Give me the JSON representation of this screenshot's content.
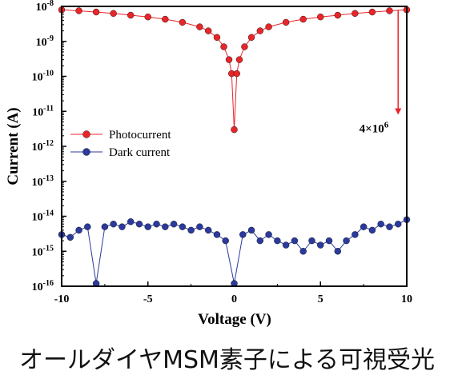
{
  "chart_data": {
    "type": "scatter",
    "title": "",
    "xlabel": "Voltage (V)",
    "ylabel": "Current (A)",
    "xlim": [
      -10,
      10
    ],
    "ylim": [
      1e-16,
      1e-08
    ],
    "yscale": "log",
    "x_ticks": [
      "-10",
      "-5",
      "0",
      "5",
      "10"
    ],
    "y_ticks": [
      {
        "base": "10",
        "exp": "-16"
      },
      {
        "base": "10",
        "exp": "-15"
      },
      {
        "base": "10",
        "exp": "-14"
      },
      {
        "base": "10",
        "exp": "-13"
      },
      {
        "base": "10",
        "exp": "-12"
      },
      {
        "base": "10",
        "exp": "-11"
      },
      {
        "base": "10",
        "exp": "-10"
      },
      {
        "base": "10",
        "exp": "-9"
      },
      {
        "base": "10",
        "exp": "-8"
      }
    ],
    "legend": {
      "position": "left-middle"
    },
    "series": [
      {
        "name": "Photocurrent",
        "color": "#e8262a",
        "x": [
          -10,
          -9,
          -8,
          -7,
          -6,
          -5,
          -4,
          -3,
          -2,
          -1.5,
          -1,
          -0.6,
          -0.3,
          -0.15,
          0,
          0.15,
          0.3,
          0.6,
          1,
          1.5,
          2,
          3,
          4,
          5,
          6,
          7,
          8,
          9,
          10
        ],
        "y": [
          8e-09,
          7.5e-09,
          6.9e-09,
          6.3e-09,
          5.6e-09,
          5e-09,
          4.3e-09,
          3.5e-09,
          2.6e-09,
          2e-09,
          1.3e-09,
          7e-10,
          3e-10,
          1.2e-10,
          3e-12,
          1.2e-10,
          3e-10,
          7e-10,
          1.3e-09,
          2e-09,
          2.6e-09,
          3.5e-09,
          4.3e-09,
          5e-09,
          5.6e-09,
          6.3e-09,
          6.9e-09,
          7.5e-09,
          8e-09
        ]
      },
      {
        "name": "Dark current",
        "color": "#2b3a9c",
        "x": [
          -10,
          -9.5,
          -9,
          -8.5,
          -8,
          -7.5,
          -7,
          -6.5,
          -6,
          -5.5,
          -5,
          -4.5,
          -4,
          -3.5,
          -3,
          -2.5,
          -2,
          -1.5,
          -1,
          -0.5,
          0,
          0.5,
          1,
          1.5,
          2,
          2.5,
          3,
          3.5,
          4,
          4.5,
          5,
          5.5,
          6,
          6.5,
          7,
          7.5,
          8,
          8.5,
          9,
          9.5,
          10
        ],
        "y": [
          3e-15,
          2.5e-15,
          4e-15,
          5e-15,
          1.2e-16,
          5e-15,
          6e-15,
          5e-15,
          7e-15,
          6e-15,
          5e-15,
          6e-15,
          5e-15,
          6e-15,
          5e-15,
          4e-15,
          5e-15,
          4e-15,
          3e-15,
          2e-15,
          1.2e-16,
          3e-15,
          4e-15,
          2e-15,
          3e-15,
          2e-15,
          1.5e-15,
          2e-15,
          1e-15,
          2e-15,
          1.5e-15,
          2e-15,
          1e-15,
          2e-15,
          3e-15,
          5e-15,
          4e-15,
          6e-15,
          5e-15,
          6e-15,
          8e-15
        ]
      }
    ],
    "annotations": [
      {
        "text": "4×10",
        "sup": "6",
        "at_x": 9.5,
        "arrow_from": 8e-09,
        "arrow_to": 8e-12,
        "color": "#e8262a"
      }
    ]
  },
  "caption": "オールダイヤMSM素子による可視受光"
}
